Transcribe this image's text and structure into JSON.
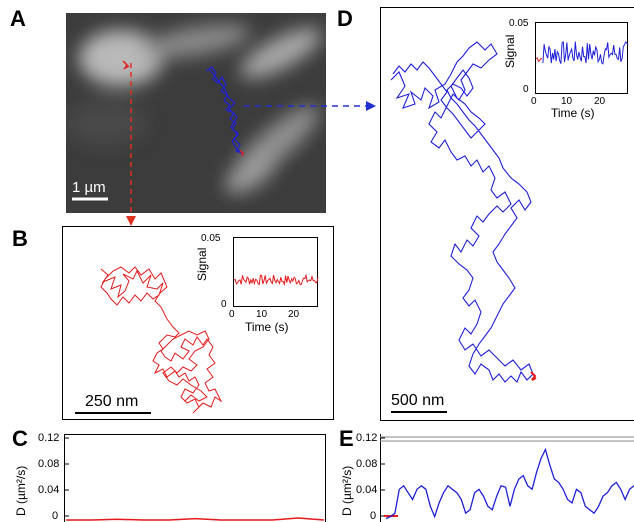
{
  "panels": {
    "A": {
      "letter": "A",
      "scale_bar": "1 µm"
    },
    "B": {
      "letter": "B",
      "scale_bar": "250 nm",
      "inset": {
        "ylabel": "Signal",
        "xlabel": "Time (s)",
        "yticks": [
          "0.05",
          "0"
        ],
        "xticks": [
          "0",
          "10",
          "20"
        ]
      }
    },
    "C": {
      "letter": "C",
      "ylabel": "D (µm²/s)",
      "yticks": [
        "0.12",
        "0.08",
        "0.04",
        "0"
      ]
    },
    "D": {
      "letter": "D",
      "scale_bar": "500 nm",
      "inset": {
        "ylabel": "Signal",
        "xlabel": "Time (s)",
        "yticks": [
          "0.05",
          "0"
        ],
        "xticks": [
          "0",
          "10",
          "20"
        ]
      }
    },
    "E": {
      "letter": "E",
      "ylabel": "D (µm²/s)",
      "yticks": [
        "0.12",
        "0.08",
        "0.04",
        "0"
      ]
    }
  },
  "colors": {
    "red_track": "#e41a1c",
    "blue_track": "#1f1fd6",
    "red_arrow": "#e03020",
    "blue_arrow": "#2030d0"
  },
  "chart_data": [
    {
      "type": "line",
      "panel": "B-inset",
      "xlabel": "Time (s)",
      "ylabel": "Signal",
      "xlim": [
        0,
        27
      ],
      "ylim": [
        0,
        0.055
      ],
      "series": [
        {
          "color": "red",
          "mean": 0.022,
          "noise": 0.004
        }
      ]
    },
    {
      "type": "line",
      "panel": "D-inset",
      "xlabel": "Time (s)",
      "ylabel": "Signal",
      "xlim": [
        0,
        27
      ],
      "ylim": [
        0,
        0.055
      ],
      "series": [
        {
          "color": "red",
          "x": [
            0,
            2
          ],
          "mean": 0.028
        },
        {
          "color": "blue",
          "x": [
            2,
            27
          ],
          "mean": 0.032,
          "noise": 0.009
        }
      ]
    },
    {
      "type": "line",
      "panel": "C",
      "ylabel": "D (µm²/s)",
      "ylim": [
        0,
        0.12
      ],
      "series": [
        {
          "color": "red",
          "values": [
            0.0,
            0.0,
            0.001,
            0.0,
            0.0,
            0.002,
            0.0,
            0.0,
            0.0,
            0.003,
            0.0
          ]
        }
      ]
    },
    {
      "type": "line",
      "panel": "E",
      "ylabel": "D (µm²/s)",
      "ylim": [
        0,
        0.12
      ],
      "series": [
        {
          "color": "blue",
          "values": [
            0.002,
            0.005,
            0.01,
            0.045,
            0.05,
            0.04,
            0.03,
            0.045,
            0.05,
            0.045,
            0.02,
            0.005,
            0.025,
            0.04,
            0.05,
            0.045,
            0.04,
            0.03,
            0.01,
            0.015,
            0.04,
            0.045,
            0.035,
            0.02,
            0.015,
            0.035,
            0.05,
            0.048,
            0.02,
            0.045,
            0.06,
            0.065,
            0.05,
            0.045,
            0.07,
            0.09,
            0.103,
            0.08,
            0.06,
            0.055,
            0.045,
            0.03,
            0.025,
            0.045,
            0.04,
            0.02,
            0.015,
            0.01,
            0.02,
            0.035,
            0.04,
            0.05,
            0.055,
            0.045,
            0.03,
            0.045,
            0.05
          ]
        }
      ]
    }
  ]
}
